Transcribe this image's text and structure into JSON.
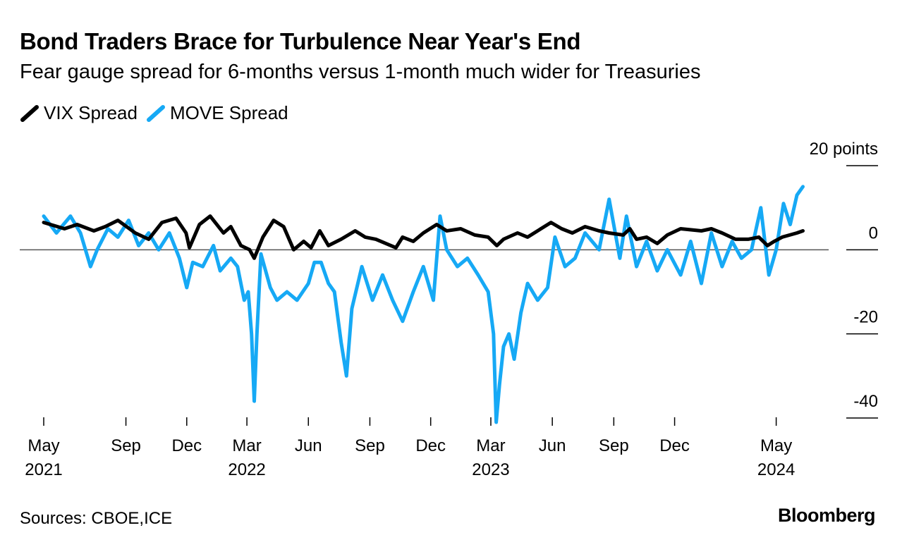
{
  "chart_data": {
    "type": "line",
    "title": "Bond Traders Brace for Turbulence Near Year's End",
    "subtitle": "Fear gauge spread for 6-months versus 1-month much wider for Treasuries",
    "ylabel": "points",
    "ylim": [
      -40,
      20
    ],
    "yticks": [
      {
        "value": 20,
        "label": "20 points"
      },
      {
        "value": 0,
        "label": "0"
      },
      {
        "value": -20,
        "label": "-20"
      },
      {
        "value": -40,
        "label": "-40"
      }
    ],
    "xlim": [
      "2021-05-01",
      "2024-06-20"
    ],
    "xticks": [
      {
        "date": "2021-05-01",
        "label": "May",
        "year": "2021"
      },
      {
        "date": "2021-09-01",
        "label": "Sep",
        "year": ""
      },
      {
        "date": "2021-12-01",
        "label": "Dec",
        "year": ""
      },
      {
        "date": "2022-03-01",
        "label": "Mar",
        "year": "2022"
      },
      {
        "date": "2022-06-01",
        "label": "Jun",
        "year": ""
      },
      {
        "date": "2022-09-01",
        "label": "Sep",
        "year": ""
      },
      {
        "date": "2022-12-01",
        "label": "Dec",
        "year": ""
      },
      {
        "date": "2023-03-01",
        "label": "Mar",
        "year": "2023"
      },
      {
        "date": "2023-06-01",
        "label": "Jun",
        "year": ""
      },
      {
        "date": "2023-09-01",
        "label": "Sep",
        "year": ""
      },
      {
        "date": "2023-12-01",
        "label": "Dec",
        "year": ""
      },
      {
        "date": "2024-05-01",
        "label": "May",
        "year": "2024"
      }
    ],
    "grid": false,
    "legend_position": "top-left",
    "series": [
      {
        "name": "VIX Spread",
        "color": "#000000",
        "points": [
          [
            "2021-05-01",
            6.5
          ],
          [
            "2021-06-01",
            5.0
          ],
          [
            "2021-06-20",
            6.0
          ],
          [
            "2021-07-15",
            4.5
          ],
          [
            "2021-08-01",
            5.5
          ],
          [
            "2021-08-20",
            7.0
          ],
          [
            "2021-09-15",
            4.0
          ],
          [
            "2021-10-05",
            2.5
          ],
          [
            "2021-10-25",
            6.5
          ],
          [
            "2021-11-15",
            7.5
          ],
          [
            "2021-11-30",
            4.0
          ],
          [
            "2021-12-05",
            0.5
          ],
          [
            "2021-12-20",
            6.0
          ],
          [
            "2022-01-05",
            8.0
          ],
          [
            "2022-01-25",
            4.0
          ],
          [
            "2022-02-05",
            5.5
          ],
          [
            "2022-02-20",
            1.0
          ],
          [
            "2022-03-05",
            0.0
          ],
          [
            "2022-03-12",
            -2.0
          ],
          [
            "2022-03-25",
            3.0
          ],
          [
            "2022-04-10",
            7.0
          ],
          [
            "2022-04-25",
            5.5
          ],
          [
            "2022-05-10",
            0.0
          ],
          [
            "2022-05-25",
            2.0
          ],
          [
            "2022-06-05",
            0.5
          ],
          [
            "2022-06-18",
            4.5
          ],
          [
            "2022-07-01",
            1.0
          ],
          [
            "2022-07-20",
            2.5
          ],
          [
            "2022-08-10",
            4.5
          ],
          [
            "2022-08-25",
            3.0
          ],
          [
            "2022-09-10",
            2.5
          ],
          [
            "2022-09-25",
            1.5
          ],
          [
            "2022-10-10",
            0.5
          ],
          [
            "2022-10-20",
            3.0
          ],
          [
            "2022-11-05",
            2.0
          ],
          [
            "2022-11-20",
            4.0
          ],
          [
            "2022-12-10",
            6.0
          ],
          [
            "2022-12-25",
            4.5
          ],
          [
            "2023-01-15",
            5.0
          ],
          [
            "2023-02-05",
            3.5
          ],
          [
            "2023-02-25",
            3.0
          ],
          [
            "2023-03-10",
            1.0
          ],
          [
            "2023-03-20",
            2.5
          ],
          [
            "2023-04-10",
            4.0
          ],
          [
            "2023-04-25",
            3.0
          ],
          [
            "2023-05-15",
            5.0
          ],
          [
            "2023-05-30",
            6.5
          ],
          [
            "2023-06-15",
            5.0
          ],
          [
            "2023-07-01",
            4.0
          ],
          [
            "2023-07-20",
            5.5
          ],
          [
            "2023-08-10",
            4.5
          ],
          [
            "2023-08-25",
            4.0
          ],
          [
            "2023-09-15",
            3.5
          ],
          [
            "2023-09-25",
            5.0
          ],
          [
            "2023-10-05",
            2.5
          ],
          [
            "2023-10-20",
            3.0
          ],
          [
            "2023-11-05",
            1.5
          ],
          [
            "2023-11-20",
            3.5
          ],
          [
            "2023-12-10",
            5.0
          ],
          [
            "2024-01-10",
            4.5
          ],
          [
            "2024-01-25",
            5.0
          ],
          [
            "2024-02-10",
            4.0
          ],
          [
            "2024-03-01",
            2.5
          ],
          [
            "2024-03-20",
            2.5
          ],
          [
            "2024-04-05",
            3.0
          ],
          [
            "2024-04-18",
            1.0
          ],
          [
            "2024-04-28",
            2.0
          ],
          [
            "2024-05-10",
            3.0
          ],
          [
            "2024-06-01",
            4.0
          ],
          [
            "2024-06-10",
            4.5
          ]
        ]
      },
      {
        "name": "MOVE Spread",
        "color": "#16a9f5",
        "points": [
          [
            "2021-05-01",
            8.0
          ],
          [
            "2021-05-20",
            4.0
          ],
          [
            "2021-06-10",
            8.0
          ],
          [
            "2021-06-25",
            4.0
          ],
          [
            "2021-07-10",
            -4.0
          ],
          [
            "2021-07-20",
            0.0
          ],
          [
            "2021-08-05",
            5.0
          ],
          [
            "2021-08-20",
            3.0
          ],
          [
            "2021-09-05",
            7.0
          ],
          [
            "2021-09-20",
            1.0
          ],
          [
            "2021-10-05",
            4.0
          ],
          [
            "2021-10-20",
            0.0
          ],
          [
            "2021-11-05",
            4.0
          ],
          [
            "2021-11-20",
            -2.0
          ],
          [
            "2021-12-01",
            -9.0
          ],
          [
            "2021-12-10",
            -3.0
          ],
          [
            "2021-12-25",
            -4.0
          ],
          [
            "2022-01-10",
            1.0
          ],
          [
            "2022-01-20",
            -5.0
          ],
          [
            "2022-02-05",
            -2.0
          ],
          [
            "2022-02-15",
            -4.0
          ],
          [
            "2022-02-25",
            -12.0
          ],
          [
            "2022-03-03",
            -10.0
          ],
          [
            "2022-03-08",
            -20.0
          ],
          [
            "2022-03-12",
            -36.0
          ],
          [
            "2022-03-16",
            -20.0
          ],
          [
            "2022-03-22",
            -1.0
          ],
          [
            "2022-04-05",
            -9.0
          ],
          [
            "2022-04-15",
            -12.0
          ],
          [
            "2022-04-30",
            -10.0
          ],
          [
            "2022-05-15",
            -12.0
          ],
          [
            "2022-06-01",
            -8.0
          ],
          [
            "2022-06-10",
            -3.0
          ],
          [
            "2022-06-20",
            -3.0
          ],
          [
            "2022-07-01",
            -8.0
          ],
          [
            "2022-07-10",
            -10.0
          ],
          [
            "2022-07-20",
            -22.0
          ],
          [
            "2022-07-28",
            -30.0
          ],
          [
            "2022-08-05",
            -14.0
          ],
          [
            "2022-08-20",
            -4.0
          ],
          [
            "2022-09-05",
            -12.0
          ],
          [
            "2022-09-20",
            -6.0
          ],
          [
            "2022-10-05",
            -12.0
          ],
          [
            "2022-10-20",
            -17.0
          ],
          [
            "2022-11-05",
            -10.0
          ],
          [
            "2022-11-20",
            -4.0
          ],
          [
            "2022-12-05",
            -12.0
          ],
          [
            "2022-12-15",
            8.0
          ],
          [
            "2022-12-25",
            0.0
          ],
          [
            "2023-01-10",
            -4.0
          ],
          [
            "2023-01-25",
            -2.0
          ],
          [
            "2023-02-10",
            -6.0
          ],
          [
            "2023-02-25",
            -10.0
          ],
          [
            "2023-03-05",
            -20.0
          ],
          [
            "2023-03-09",
            -41.0
          ],
          [
            "2023-03-14",
            -32.0
          ],
          [
            "2023-03-20",
            -23.0
          ],
          [
            "2023-03-28",
            -20.0
          ],
          [
            "2023-04-05",
            -26.0
          ],
          [
            "2023-04-15",
            -15.0
          ],
          [
            "2023-04-25",
            -8.0
          ],
          [
            "2023-05-10",
            -12.0
          ],
          [
            "2023-05-25",
            -9.0
          ],
          [
            "2023-06-05",
            3.0
          ],
          [
            "2023-06-20",
            -4.0
          ],
          [
            "2023-07-05",
            -2.0
          ],
          [
            "2023-07-20",
            4.0
          ],
          [
            "2023-08-10",
            0.0
          ],
          [
            "2023-08-25",
            12.0
          ],
          [
            "2023-09-10",
            -2.0
          ],
          [
            "2023-09-20",
            8.0
          ],
          [
            "2023-10-05",
            -4.0
          ],
          [
            "2023-10-20",
            2.0
          ],
          [
            "2023-11-05",
            -5.0
          ],
          [
            "2023-11-20",
            0.0
          ],
          [
            "2023-12-10",
            -6.0
          ],
          [
            "2023-12-25",
            2.0
          ],
          [
            "2024-01-10",
            -8.0
          ],
          [
            "2024-01-25",
            4.0
          ],
          [
            "2024-02-10",
            -4.0
          ],
          [
            "2024-02-25",
            2.0
          ],
          [
            "2024-03-10",
            -2.0
          ],
          [
            "2024-03-25",
            0.0
          ],
          [
            "2024-04-08",
            10.0
          ],
          [
            "2024-04-20",
            -6.0
          ],
          [
            "2024-05-01",
            0.0
          ],
          [
            "2024-05-12",
            11.0
          ],
          [
            "2024-05-22",
            6.0
          ],
          [
            "2024-06-01",
            13.0
          ],
          [
            "2024-06-10",
            15.0
          ]
        ]
      }
    ]
  },
  "header": {
    "title": "Bond Traders Brace for Turbulence Near Year's End",
    "subtitle": "Fear gauge spread for 6-months versus 1-month much wider for Treasuries"
  },
  "legend": {
    "items": [
      {
        "label": "VIX Spread",
        "color": "#000000"
      },
      {
        "label": "MOVE Spread",
        "color": "#16a9f5"
      }
    ]
  },
  "footer": {
    "source": "Sources: CBOE,ICE",
    "brand": "Bloomberg"
  }
}
